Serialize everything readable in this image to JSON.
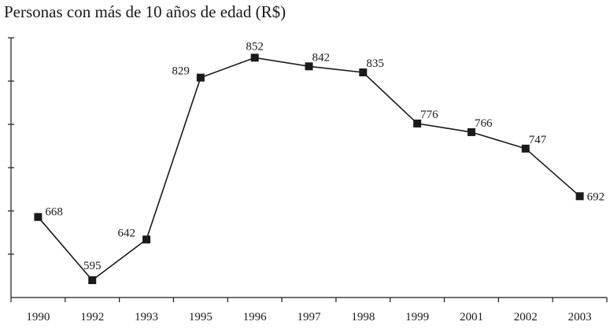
{
  "chart_data": {
    "type": "line",
    "title": "Personas con más de 10 años de edad (R$)",
    "xlabel": "",
    "ylabel": "",
    "categories": [
      "1990",
      "1992",
      "1993",
      "1995",
      "1996",
      "1997",
      "1998",
      "1999",
      "2001",
      "2002",
      "2003"
    ],
    "series": [
      {
        "values": [
          668,
          595,
          642,
          829,
          852,
          842,
          835,
          776,
          766,
          747,
          692
        ]
      }
    ],
    "ylim": [
      575,
      875
    ],
    "ytick_step": 50,
    "grid": false,
    "legend": "none",
    "marker": "square",
    "line_color": "#1a1a1a"
  }
}
